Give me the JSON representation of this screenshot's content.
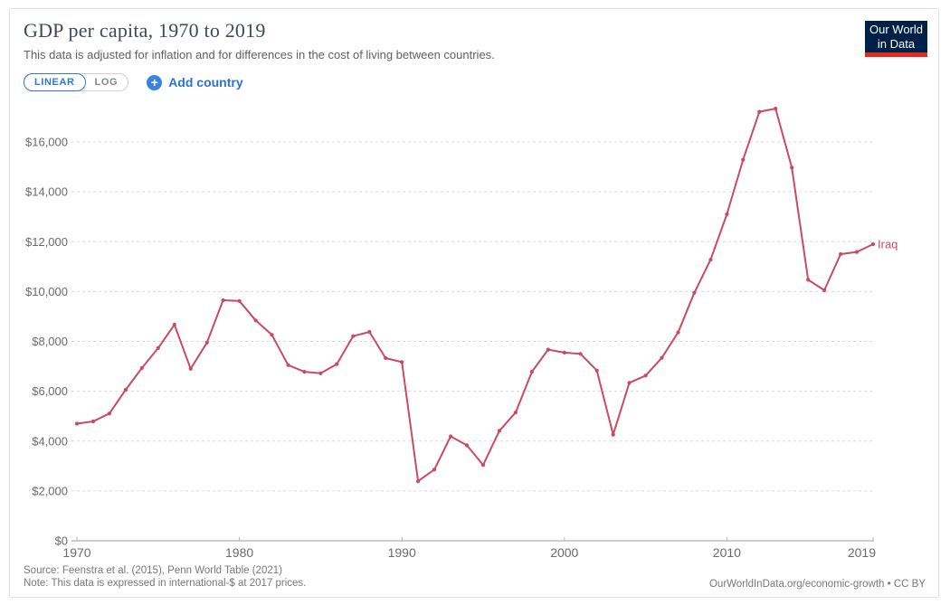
{
  "header": {
    "title": "GDP per capita, 1970 to 2019",
    "subtitle": "This data is adjusted for inflation and for differences in the cost of living between countries."
  },
  "controls": {
    "linear_label": "LINEAR",
    "log_label": "LOG",
    "plus_icon": "+",
    "add_country_label": "Add country"
  },
  "logo": {
    "line1": "Our World",
    "line2": "in Data",
    "bg_color": "#002147",
    "bar_color": "#e02b20"
  },
  "chart_data": {
    "type": "line",
    "title": "GDP per capita, 1970 to 2019",
    "xlabel": "",
    "ylabel": "",
    "xlim": [
      1970,
      2019
    ],
    "ylim": [
      0,
      16000
    ],
    "grid": "horizontal-dashed",
    "legend_position": "line-end-label",
    "x_ticks": [
      {
        "value": 1970,
        "label": "1970"
      },
      {
        "value": 1980,
        "label": "1980"
      },
      {
        "value": 1990,
        "label": "1990"
      },
      {
        "value": 2000,
        "label": "2000"
      },
      {
        "value": 2010,
        "label": "2010"
      },
      {
        "value": 2019,
        "label": "2019"
      }
    ],
    "y_ticks": [
      {
        "value": 0,
        "label": "$0"
      },
      {
        "value": 2000,
        "label": "$2,000"
      },
      {
        "value": 4000,
        "label": "$4,000"
      },
      {
        "value": 6000,
        "label": "$6,000"
      },
      {
        "value": 8000,
        "label": "$8,000"
      },
      {
        "value": 10000,
        "label": "$10,000"
      },
      {
        "value": 12000,
        "label": "$12,000"
      },
      {
        "value": 14000,
        "label": "$14,000"
      },
      {
        "value": 16000,
        "label": "$16,000"
      }
    ],
    "series": [
      {
        "name": "Iraq",
        "color": "#ca4b61",
        "x": [
          1970,
          1971,
          1972,
          1973,
          1974,
          1975,
          1976,
          1977,
          1978,
          1979,
          1980,
          1981,
          1982,
          1983,
          1984,
          1985,
          1986,
          1987,
          1988,
          1989,
          1990,
          1991,
          1992,
          1993,
          1994,
          1995,
          1996,
          1997,
          1998,
          1999,
          2000,
          2001,
          2002,
          2003,
          2004,
          2005,
          2006,
          2007,
          2008,
          2009,
          2010,
          2011,
          2012,
          2013,
          2014,
          2015,
          2016,
          2017,
          2018,
          2019
        ],
        "values": [
          4700,
          4790,
          5110,
          6060,
          6930,
          7730,
          8670,
          6900,
          7950,
          9650,
          9620,
          8840,
          8260,
          7050,
          6780,
          6720,
          7090,
          8210,
          8380,
          7330,
          7170,
          2390,
          2860,
          4190,
          3830,
          3040,
          4410,
          5150,
          6780,
          7670,
          7550,
          7500,
          6830,
          4260,
          6340,
          6630,
          7340,
          8360,
          9950,
          11280,
          13100,
          15290,
          17210,
          17340,
          14970,
          10470,
          10050,
          11500,
          11590,
          11900
        ]
      }
    ]
  },
  "footer": {
    "source": "Source: Feenstra et al. (2015), Penn World Table (2021)",
    "note": "Note: This data is expressed in international-$ at 2017 prices.",
    "link": "OurWorldInData.org/economic-growth • CC BY"
  }
}
